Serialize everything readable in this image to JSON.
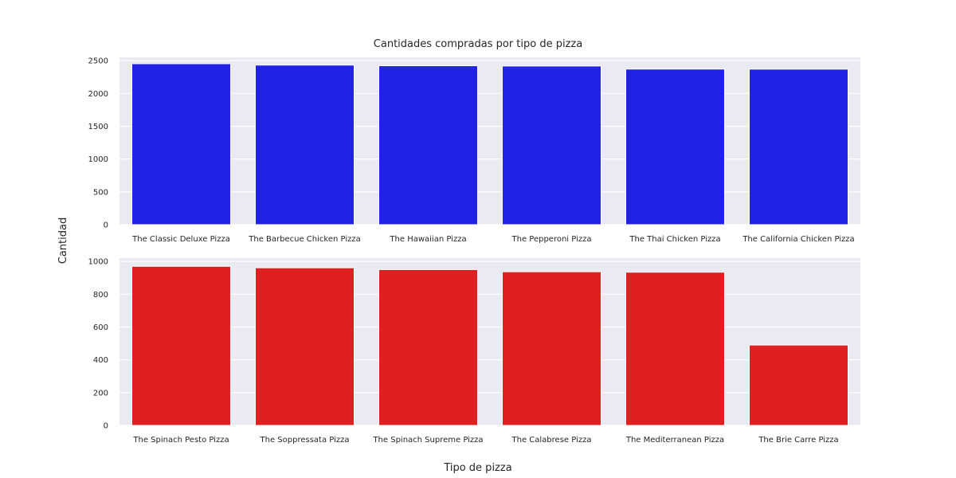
{
  "figure": {
    "title": "Cantidades compradas por tipo de pizza",
    "ylabel": "Cantidad",
    "xlabel": "Tipo de pizza",
    "background": "#ffffff",
    "axes_background": "#eaeaf2",
    "grid_color": "#ffffff"
  },
  "chart_data": [
    {
      "type": "bar",
      "categories": [
        "The Classic Deluxe Pizza",
        "The Barbecue Chicken Pizza",
        "The Hawaiian Pizza",
        "The Pepperoni Pizza",
        "The Thai Chicken Pizza",
        "The California Chicken Pizza"
      ],
      "values": [
        2453,
        2432,
        2422,
        2418,
        2371,
        2370
      ],
      "ylim": [
        0,
        2550
      ],
      "yticks": [
        0,
        500,
        1000,
        1500,
        2000,
        2500
      ],
      "grid": true,
      "color": "#2222e6"
    },
    {
      "type": "bar",
      "categories": [
        "The Spinach Pesto Pizza",
        "The Soppressata Pizza",
        "The Spinach Supreme Pizza",
        "The Calabrese Pizza",
        "The Mediterranean Pizza",
        "The Brie Carre Pizza"
      ],
      "values": [
        970,
        961,
        950,
        937,
        934,
        490
      ],
      "ylim": [
        0,
        1020
      ],
      "yticks": [
        0,
        200,
        400,
        600,
        800,
        1000
      ],
      "grid": true,
      "color": "#df2020"
    }
  ]
}
